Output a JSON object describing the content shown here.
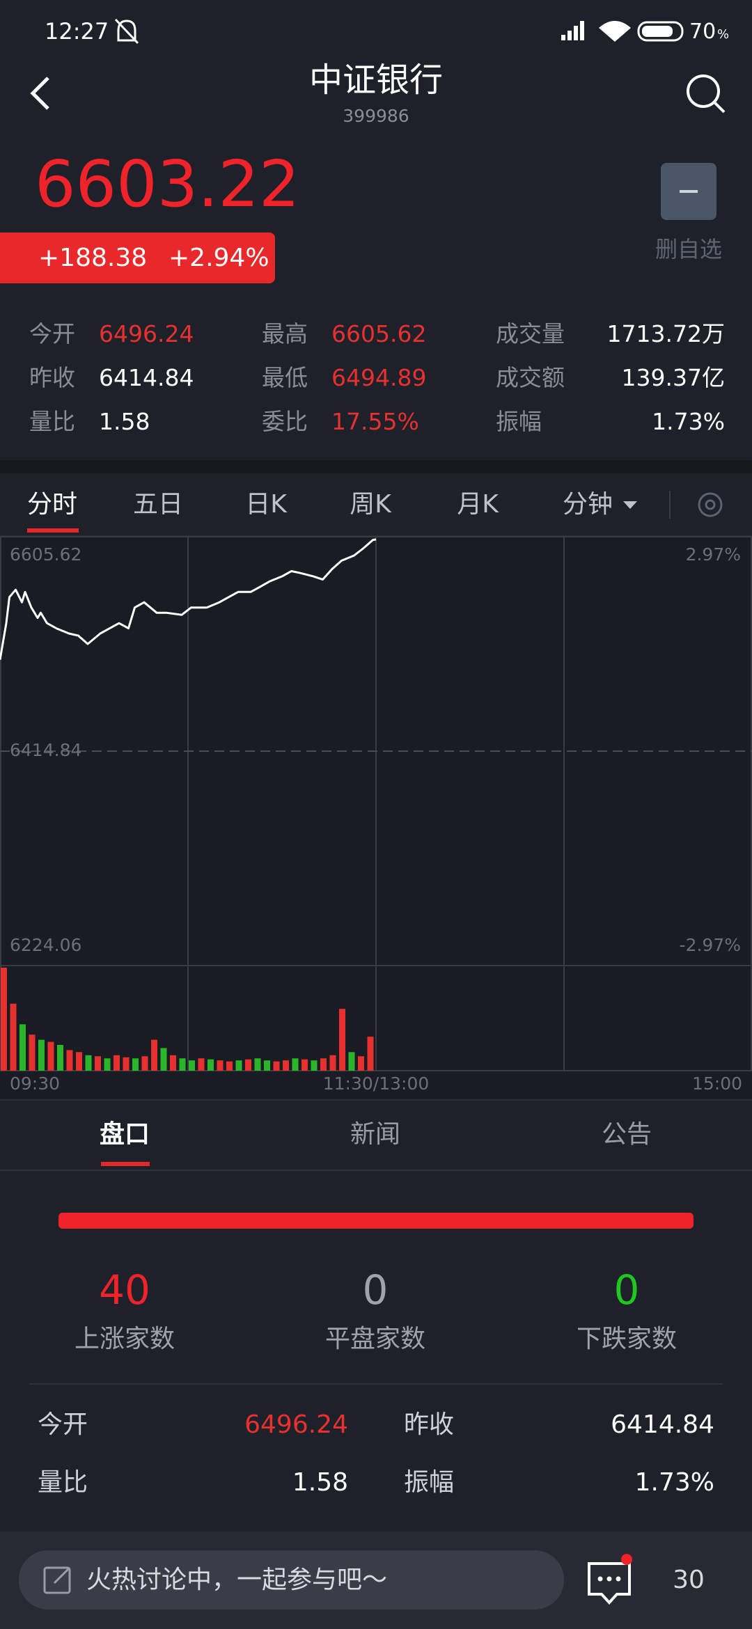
{
  "status_bar": {
    "time": "12:27",
    "battery": "70",
    "battery_unit": "%"
  },
  "header": {
    "title": "中证银行",
    "code": "399986"
  },
  "quote": {
    "price": "6603.22",
    "change": "+188.38",
    "change_pct": "+2.94%",
    "watch_button": "删自选"
  },
  "stats": [
    [
      {
        "label": "今开",
        "value": "6496.24",
        "color": "#e8312f"
      },
      {
        "label": "最高",
        "value": "6605.62",
        "color": "#e8312f"
      },
      {
        "label": "成交量",
        "value": "1713.72万",
        "color": "#ffffff"
      }
    ],
    [
      {
        "label": "昨收",
        "value": "6414.84",
        "color": "#ffffff"
      },
      {
        "label": "最低",
        "value": "6494.89",
        "color": "#e8312f"
      },
      {
        "label": "成交额",
        "value": "139.37亿",
        "color": "#ffffff"
      }
    ],
    [
      {
        "label": "量比",
        "value": "1.58",
        "color": "#ffffff"
      },
      {
        "label": "委比",
        "value": "17.55%",
        "color": "#e8312f"
      },
      {
        "label": "振幅",
        "value": "1.73%",
        "color": "#ffffff"
      }
    ]
  ],
  "tabs": [
    "分时",
    "五日",
    "日K",
    "周K",
    "月K",
    "分钟"
  ],
  "intraday_chart": {
    "type": "line",
    "color": "#ffffff",
    "x": [
      0,
      2,
      3,
      5,
      7,
      8,
      10,
      12,
      13,
      15,
      18,
      22,
      25,
      28,
      32,
      35,
      38,
      41,
      43,
      46,
      50,
      53,
      58,
      61,
      66,
      70,
      73,
      76,
      80,
      83,
      86,
      90,
      93,
      96,
      100,
      103,
      106,
      109,
      113,
      116,
      119,
      120
    ],
    "values": [
      6496.24,
      6528.7,
      6551.9,
      6558.4,
      6547.3,
      6556.5,
      6542.6,
      6533.4,
      6538.0,
      6528.7,
      6524.1,
      6519.5,
      6517.6,
      6510.2,
      6519.5,
      6524.1,
      6528.7,
      6524.1,
      6542.6,
      6547.3,
      6538.0,
      6538.0,
      6536.1,
      6542.6,
      6542.6,
      6547.3,
      6551.9,
      6556.5,
      6556.5,
      6561.1,
      6565.8,
      6570.4,
      6575.0,
      6573.2,
      6570.4,
      6567.6,
      6576.9,
      6584.3,
      6588.9,
      6595.4,
      6602.8,
      6603.22
    ],
    "xlim": [
      0,
      240
    ],
    "ylim": [
      6224.06,
      6605.62
    ],
    "yticks": [
      6605.62,
      6414.84,
      6224.06
    ],
    "y2lim": [
      -2.97,
      2.97
    ],
    "y2ticks": [
      {
        "value": 2.97,
        "label": "2.97%"
      },
      {
        "value": -2.97,
        "label": "-2.97%"
      }
    ],
    "xticks": [
      {
        "value": 0,
        "label": "09:30"
      },
      {
        "value": 120,
        "label": "11:30/13:00"
      },
      {
        "value": 240,
        "label": "15:00"
      }
    ],
    "grid_x": [
      60,
      120,
      180
    ]
  },
  "volume": {
    "type": "bar",
    "x": [
      0,
      3,
      6,
      9,
      12,
      15,
      18,
      21,
      24,
      27,
      30,
      33,
      36,
      39,
      42,
      45,
      48,
      51,
      54,
      57,
      60,
      63,
      66,
      69,
      72,
      75,
      78,
      81,
      84,
      87,
      90,
      93,
      96,
      99,
      102,
      105,
      108,
      111,
      114,
      117
    ],
    "values": [
      100,
      65,
      45,
      35,
      30,
      28,
      25,
      20,
      18,
      15,
      14,
      12,
      15,
      13,
      12,
      14,
      30,
      22,
      15,
      12,
      10,
      12,
      11,
      10,
      9,
      10,
      11,
      12,
      10,
      9,
      10,
      12,
      11,
      10,
      12,
      15,
      60,
      18,
      14,
      33
    ],
    "colors": [
      "#e8312f",
      "#e8312f",
      "#2ab52a",
      "#e8312f",
      "#2ab52a",
      "#e8312f",
      "#2ab52a",
      "#e8312f",
      "#e8312f",
      "#2ab52a",
      "#e8312f",
      "#2ab52a",
      "#e8312f",
      "#e8312f",
      "#2ab52a",
      "#e8312f",
      "#e8312f",
      "#2ab52a",
      "#e8312f",
      "#2ab52a",
      "#2ab52a",
      "#e8312f",
      "#2ab52a",
      "#e8312f",
      "#e8312f",
      "#2ab52a",
      "#e8312f",
      "#2ab52a",
      "#2ab52a",
      "#e8312f",
      "#e8312f",
      "#2ab52a",
      "#e8312f",
      "#2ab52a",
      "#e8312f",
      "#e8312f",
      "#e8312f",
      "#2ab52a",
      "#e8312f",
      "#e8312f"
    ],
    "ylim": [
      0,
      100
    ]
  },
  "panel_tabs": [
    "盘口",
    "新闻",
    "公告"
  ],
  "breadth": [
    {
      "count": 40,
      "label": "上涨家数",
      "color": "#f0232a"
    },
    {
      "count": 0,
      "label": "平盘家数",
      "color": "#a0a3aa"
    },
    {
      "count": 0,
      "label": "下跌家数",
      "color": "#1ec81e"
    }
  ],
  "detail_rows": [
    [
      {
        "label": "今开",
        "value": "6496.24",
        "color": "#e8312f"
      },
      {
        "label": "昨收",
        "value": "6414.84",
        "color": "#ffffff"
      }
    ],
    [
      {
        "label": "量比",
        "value": "1.58",
        "color": "#ffffff"
      },
      {
        "label": "振幅",
        "value": "1.73%",
        "color": "#ffffff"
      }
    ]
  ],
  "comment_bar": {
    "placeholder": "火热讨论中，一起参与吧～",
    "count": "30"
  }
}
